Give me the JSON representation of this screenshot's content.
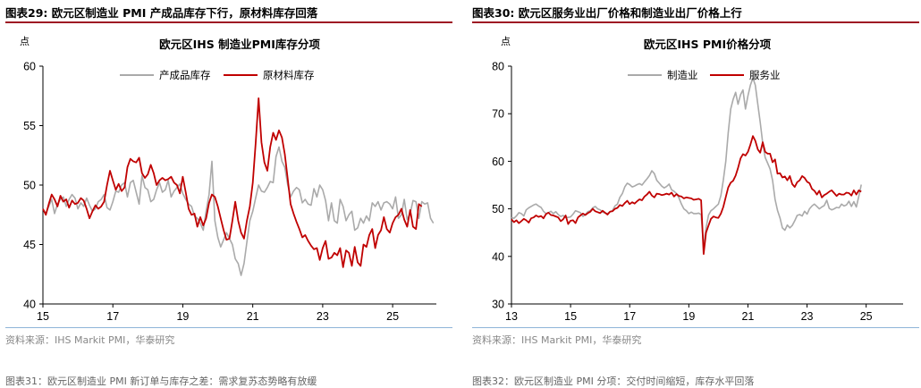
{
  "panels": [
    {
      "figure_title": "图表29:  欧元区制造业 PMI 产成品库存下行，原材料库存回落",
      "source": "资料来源：IHS Markit PMI，华泰研究",
      "next_title": "图表31：欧元区制造业 PMI 新订单与库存之差：需求复苏态势略有放缓"
    },
    {
      "figure_title": "图表30:  欧元区服务业出厂价格和制造业出厂价格上行",
      "source": "资料来源：IHS Markit PMI，华泰研究",
      "next_title": "图表32：欧元区制造业 PMI 分项：交付时间缩短，库存水平回落"
    }
  ],
  "colors": {
    "gray": "#aaaaaa",
    "red": "#c00000",
    "accent_rule": "#9e1a24",
    "footer_rule": "#8fb4d8"
  },
  "chart_data": [
    {
      "type": "line",
      "title": "欧元区IHS 制造业PMI库存分项",
      "unit_label": "点",
      "xlabel": "",
      "ylabel": "",
      "x_start": 2015.0,
      "x_step": 0.0833333,
      "x_ticks": [
        15,
        17,
        19,
        21,
        23,
        25
      ],
      "xlim": [
        2015,
        2026.25
      ],
      "ylim": [
        40,
        60
      ],
      "y_ticks": [
        40,
        45,
        50,
        55,
        60
      ],
      "legend": "top-center",
      "grid": false,
      "series": [
        {
          "name": "产成品库存",
          "color": "#aaaaaa",
          "values": [
            48.0,
            47.6,
            48.2,
            48.8,
            47.6,
            48.4,
            48.8,
            49.0,
            48.2,
            48.8,
            49.2,
            48.9,
            48.0,
            48.5,
            48.2,
            48.9,
            48.3,
            47.8,
            48.0,
            48.6,
            48.8,
            49.2,
            48.1,
            47.9,
            48.6,
            49.5,
            49.4,
            50.0,
            50.2,
            49.0,
            50.2,
            50.4,
            49.4,
            48.4,
            50.8,
            49.8,
            49.6,
            48.6,
            48.8,
            49.6,
            50.2,
            49.4,
            49.6,
            50.4,
            49.0,
            49.5,
            49.8,
            50.1,
            49.3,
            48.8,
            48.4,
            48.2,
            47.4,
            47.2,
            46.8,
            46.2,
            47.8,
            49.2,
            52.0,
            47.0,
            45.6,
            44.8,
            45.4,
            46.0,
            45.5,
            45.0,
            43.8,
            43.4,
            42.4,
            43.4,
            45.2,
            47.0,
            47.8,
            48.9,
            50.0,
            49.5,
            49.4,
            49.8,
            50.3,
            50.2,
            52.4,
            53.2,
            52.0,
            51.5,
            50.0,
            49.0,
            49.5,
            49.8,
            49.6,
            48.5,
            48.8,
            48.4,
            48.3,
            49.7,
            49.0,
            50.0,
            49.6,
            48.7,
            47.0,
            48.5,
            47.0,
            46.8,
            48.8,
            48.2,
            47.0,
            47.5,
            47.8,
            46.2,
            46.4,
            47.2,
            46.8,
            47.4,
            47.0,
            48.5,
            48.2,
            48.6,
            47.9,
            48.5,
            48.6,
            48.4,
            48.0,
            49.0,
            47.2,
            47.5,
            48.8,
            47.1,
            47.6,
            48.7,
            48.6,
            47.2,
            48.6,
            48.4,
            48.5,
            47.2,
            46.8
          ]
        },
        {
          "name": "原材料库存",
          "color": "#c00000",
          "values": [
            48.0,
            47.5,
            48.4,
            49.2,
            48.8,
            48.2,
            49.1,
            48.6,
            48.8,
            48.1,
            48.7,
            48.4,
            48.5,
            48.9,
            48.7,
            48.0,
            47.2,
            47.8,
            48.3,
            48.0,
            48.2,
            48.6,
            50.0,
            51.2,
            50.4,
            49.6,
            50.1,
            49.5,
            49.8,
            51.5,
            52.2,
            52.0,
            51.9,
            52.3,
            51.0,
            50.6,
            50.9,
            51.7,
            51.0,
            50.0,
            50.4,
            50.6,
            50.4,
            50.5,
            50.7,
            50.2,
            50.0,
            49.3,
            50.7,
            49.4,
            48.0,
            47.5,
            47.6,
            46.5,
            47.3,
            46.6,
            47.2,
            48.5,
            49.2,
            49.0,
            48.2,
            47.2,
            46.2,
            45.4,
            45.5,
            47.0,
            48.6,
            47.0,
            46.0,
            45.5,
            47.0,
            48.2,
            50.2,
            53.5,
            57.3,
            53.6,
            51.9,
            51.2,
            53.2,
            54.4,
            53.8,
            54.6,
            54.0,
            52.6,
            50.5,
            48.4,
            47.6,
            46.9,
            46.3,
            45.6,
            45.8,
            45.3,
            44.9,
            44.6,
            44.7,
            43.7,
            44.7,
            45.3,
            43.8,
            43.9,
            44.3,
            44.1,
            44.7,
            43.1,
            44.5,
            44.3,
            43.2,
            44.8,
            43.5,
            43.2,
            45.0,
            44.8,
            45.8,
            46.3,
            44.7,
            45.8,
            46.2,
            47.3,
            46.3,
            46.0,
            46.8,
            47.3,
            47.5,
            48.0,
            47.1,
            46.5,
            47.9,
            46.5,
            46.3,
            48.4,
            48.2
          ]
        }
      ]
    },
    {
      "type": "line",
      "title": "欧元区IHS PMI价格分项",
      "unit_label": "点",
      "xlabel": "",
      "ylabel": "",
      "x_start": 2013.0,
      "x_step": 0.0833333,
      "x_ticks": [
        13,
        15,
        17,
        19,
        21,
        23,
        25
      ],
      "xlim": [
        2013,
        2026.25
      ],
      "ylim": [
        30,
        80
      ],
      "y_ticks": [
        30,
        40,
        50,
        60,
        70,
        80
      ],
      "legend": "top-center",
      "grid": false,
      "series": [
        {
          "name": "制造业",
          "color": "#aaaaaa",
          "values": [
            48.2,
            48.0,
            48.5,
            49.2,
            49.0,
            48.5,
            49.8,
            50.2,
            50.5,
            50.8,
            51.0,
            50.6,
            50.3,
            49.5,
            49.0,
            49.2,
            49.5,
            49.0,
            49.4,
            48.8,
            48.4,
            48.6,
            48.2,
            48.2,
            48.3,
            48.9,
            49.6,
            49.4,
            49.2,
            48.4,
            48.8,
            49.4,
            49.6,
            50.2,
            50.5,
            50.0,
            49.8,
            49.3,
            49.1,
            49.0,
            49.4,
            49.6,
            50.6,
            51.0,
            52.4,
            53.2,
            54.6,
            55.4,
            55.1,
            54.6,
            54.8,
            55.1,
            55.3,
            55.0,
            55.7,
            56.3,
            57.0,
            58.0,
            57.4,
            56.0,
            55.4,
            54.8,
            54.4,
            54.7,
            55.2,
            54.0,
            53.7,
            53.2,
            52.3,
            51.0,
            50.0,
            49.6,
            49.0,
            49.3,
            49.0,
            49.0,
            49.1,
            48.8,
            42.0,
            46.0,
            48.7,
            49.6,
            50.0,
            50.5,
            51.0,
            52.8,
            56.0,
            60.0,
            66.0,
            71.0,
            73.0,
            74.5,
            72.0,
            74.0,
            75.0,
            71.0,
            73.8,
            76.0,
            77.5,
            76.0,
            72.0,
            68.2,
            63.8,
            60.8,
            59.6,
            58.4,
            56.0,
            52.0,
            49.7,
            48.1,
            46.0,
            45.5,
            46.6,
            46.0,
            46.5,
            47.5,
            48.6,
            48.8,
            48.5,
            49.5,
            48.9,
            50.0,
            50.6,
            51.0,
            50.5,
            50.0,
            50.4,
            50.7,
            51.8,
            50.1,
            49.8,
            50.0,
            50.3,
            50.2,
            51.0,
            50.6,
            50.8,
            51.6,
            50.5,
            51.5,
            50.4,
            52.6,
            55.1
          ]
        },
        {
          "name": "服务业",
          "color": "#c00000",
          "values": [
            47.8,
            47.2,
            47.6,
            47.0,
            47.4,
            47.9,
            47.6,
            47.1,
            48.0,
            48.2,
            48.6,
            48.3,
            48.5,
            48.0,
            48.9,
            49.2,
            48.7,
            48.6,
            48.4,
            48.2,
            47.4,
            47.8,
            48.6,
            46.8,
            47.5,
            47.6,
            47.0,
            48.2,
            48.6,
            49.0,
            48.7,
            49.1,
            49.4,
            50.0,
            49.5,
            49.3,
            49.1,
            49.6,
            49.2,
            48.8,
            49.4,
            49.5,
            50.0,
            50.2,
            50.8,
            50.6,
            51.2,
            51.7,
            51.0,
            51.4,
            51.1,
            51.6,
            52.0,
            51.8,
            52.6,
            53.0,
            53.6,
            52.8,
            52.4,
            53.2,
            53.1,
            52.9,
            53.0,
            53.2,
            53.0,
            53.4,
            52.6,
            53.1,
            52.7,
            52.6,
            52.2,
            52.4,
            52.3,
            52.2,
            51.9,
            52.0,
            52.1,
            51.8,
            40.5,
            45.0,
            46.5,
            47.9,
            48.4,
            48.2,
            48.1,
            49.0,
            50.4,
            52.5,
            54.5,
            55.5,
            55.9,
            57.0,
            58.6,
            60.6,
            61.5,
            61.2,
            62.0,
            63.5,
            65.3,
            64.3,
            62.5,
            61.8,
            64.0,
            62.0,
            61.6,
            61.6,
            59.8,
            60.4,
            57.4,
            57.5,
            56.6,
            56.8,
            56.0,
            56.9,
            55.2,
            54.6,
            55.6,
            56.0,
            56.9,
            56.5,
            55.7,
            55.4,
            54.2,
            53.8,
            53.0,
            53.8,
            52.4,
            52.9,
            53.2,
            53.6,
            53.9,
            53.3,
            52.7,
            53.2,
            53.0,
            53.0,
            53.4,
            53.3,
            52.8,
            53.9,
            53.0,
            53.9,
            53.6
          ]
        }
      ]
    }
  ]
}
